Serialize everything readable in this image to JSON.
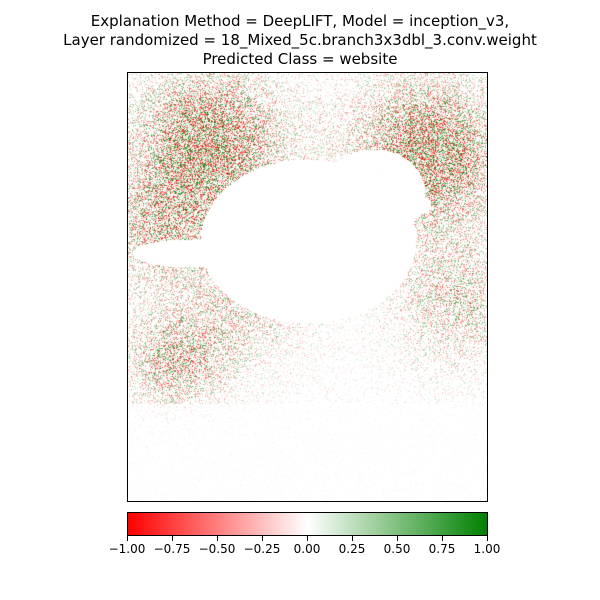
{
  "chart_data": {
    "type": "heatmap",
    "title_lines": [
      "Explanation Method = DeepLIFT, Model = inception_v3,",
      "Layer randomized = 18_Mixed_5c.branch3x3dbl_3.conv.weight",
      "Predicted Class = website"
    ],
    "colorbar": {
      "range": [
        -1.0,
        1.0
      ],
      "colors": [
        "#ff0000",
        "#ffffff",
        "#008000"
      ],
      "ticks": [
        -1.0,
        -0.75,
        -0.5,
        -0.25,
        0.0,
        0.25,
        0.5,
        0.75,
        1.0
      ],
      "tick_labels": [
        "−1.00",
        "−0.75",
        "−0.50",
        "−0.25",
        "0.00",
        "0.25",
        "0.50",
        "0.75",
        "1.00"
      ]
    },
    "xticks": [],
    "yticks": []
  }
}
